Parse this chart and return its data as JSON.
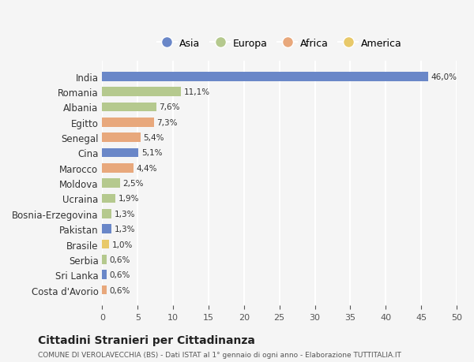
{
  "categories": [
    "India",
    "Romania",
    "Albania",
    "Egitto",
    "Senegal",
    "Cina",
    "Marocco",
    "Moldova",
    "Ucraina",
    "Bosnia-Erzegovina",
    "Pakistan",
    "Brasile",
    "Serbia",
    "Sri Lanka",
    "Costa d'Avorio"
  ],
  "values": [
    46.0,
    11.1,
    7.6,
    7.3,
    5.4,
    5.1,
    4.4,
    2.5,
    1.9,
    1.3,
    1.3,
    1.0,
    0.6,
    0.6,
    0.6
  ],
  "labels": [
    "46,0%",
    "11,1%",
    "7,6%",
    "7,3%",
    "5,4%",
    "5,1%",
    "4,4%",
    "2,5%",
    "1,9%",
    "1,3%",
    "1,3%",
    "1,0%",
    "0,6%",
    "0,6%",
    "0,6%"
  ],
  "colors": [
    "#6a87c8",
    "#b5c98e",
    "#b5c98e",
    "#e8a87c",
    "#e8a87c",
    "#6a87c8",
    "#e8a87c",
    "#b5c98e",
    "#b5c98e",
    "#b5c98e",
    "#6a87c8",
    "#e8c96a",
    "#b5c98e",
    "#6a87c8",
    "#e8a87c"
  ],
  "legend_labels": [
    "Asia",
    "Europa",
    "Africa",
    "America"
  ],
  "legend_colors": [
    "#6a87c8",
    "#b5c98e",
    "#e8a87c",
    "#e8c96a"
  ],
  "xlim": [
    0,
    50
  ],
  "xticks": [
    0,
    5,
    10,
    15,
    20,
    25,
    30,
    35,
    40,
    45,
    50
  ],
  "title": "Cittadini Stranieri per Cittadinanza",
  "subtitle": "COMUNE DI VEROLAVECCHIA (BS) - Dati ISTAT al 1° gennaio di ogni anno - Elaborazione TUTTITALIA.IT",
  "bg_color": "#f5f5f5",
  "grid_color": "#ffffff",
  "bar_height": 0.6
}
